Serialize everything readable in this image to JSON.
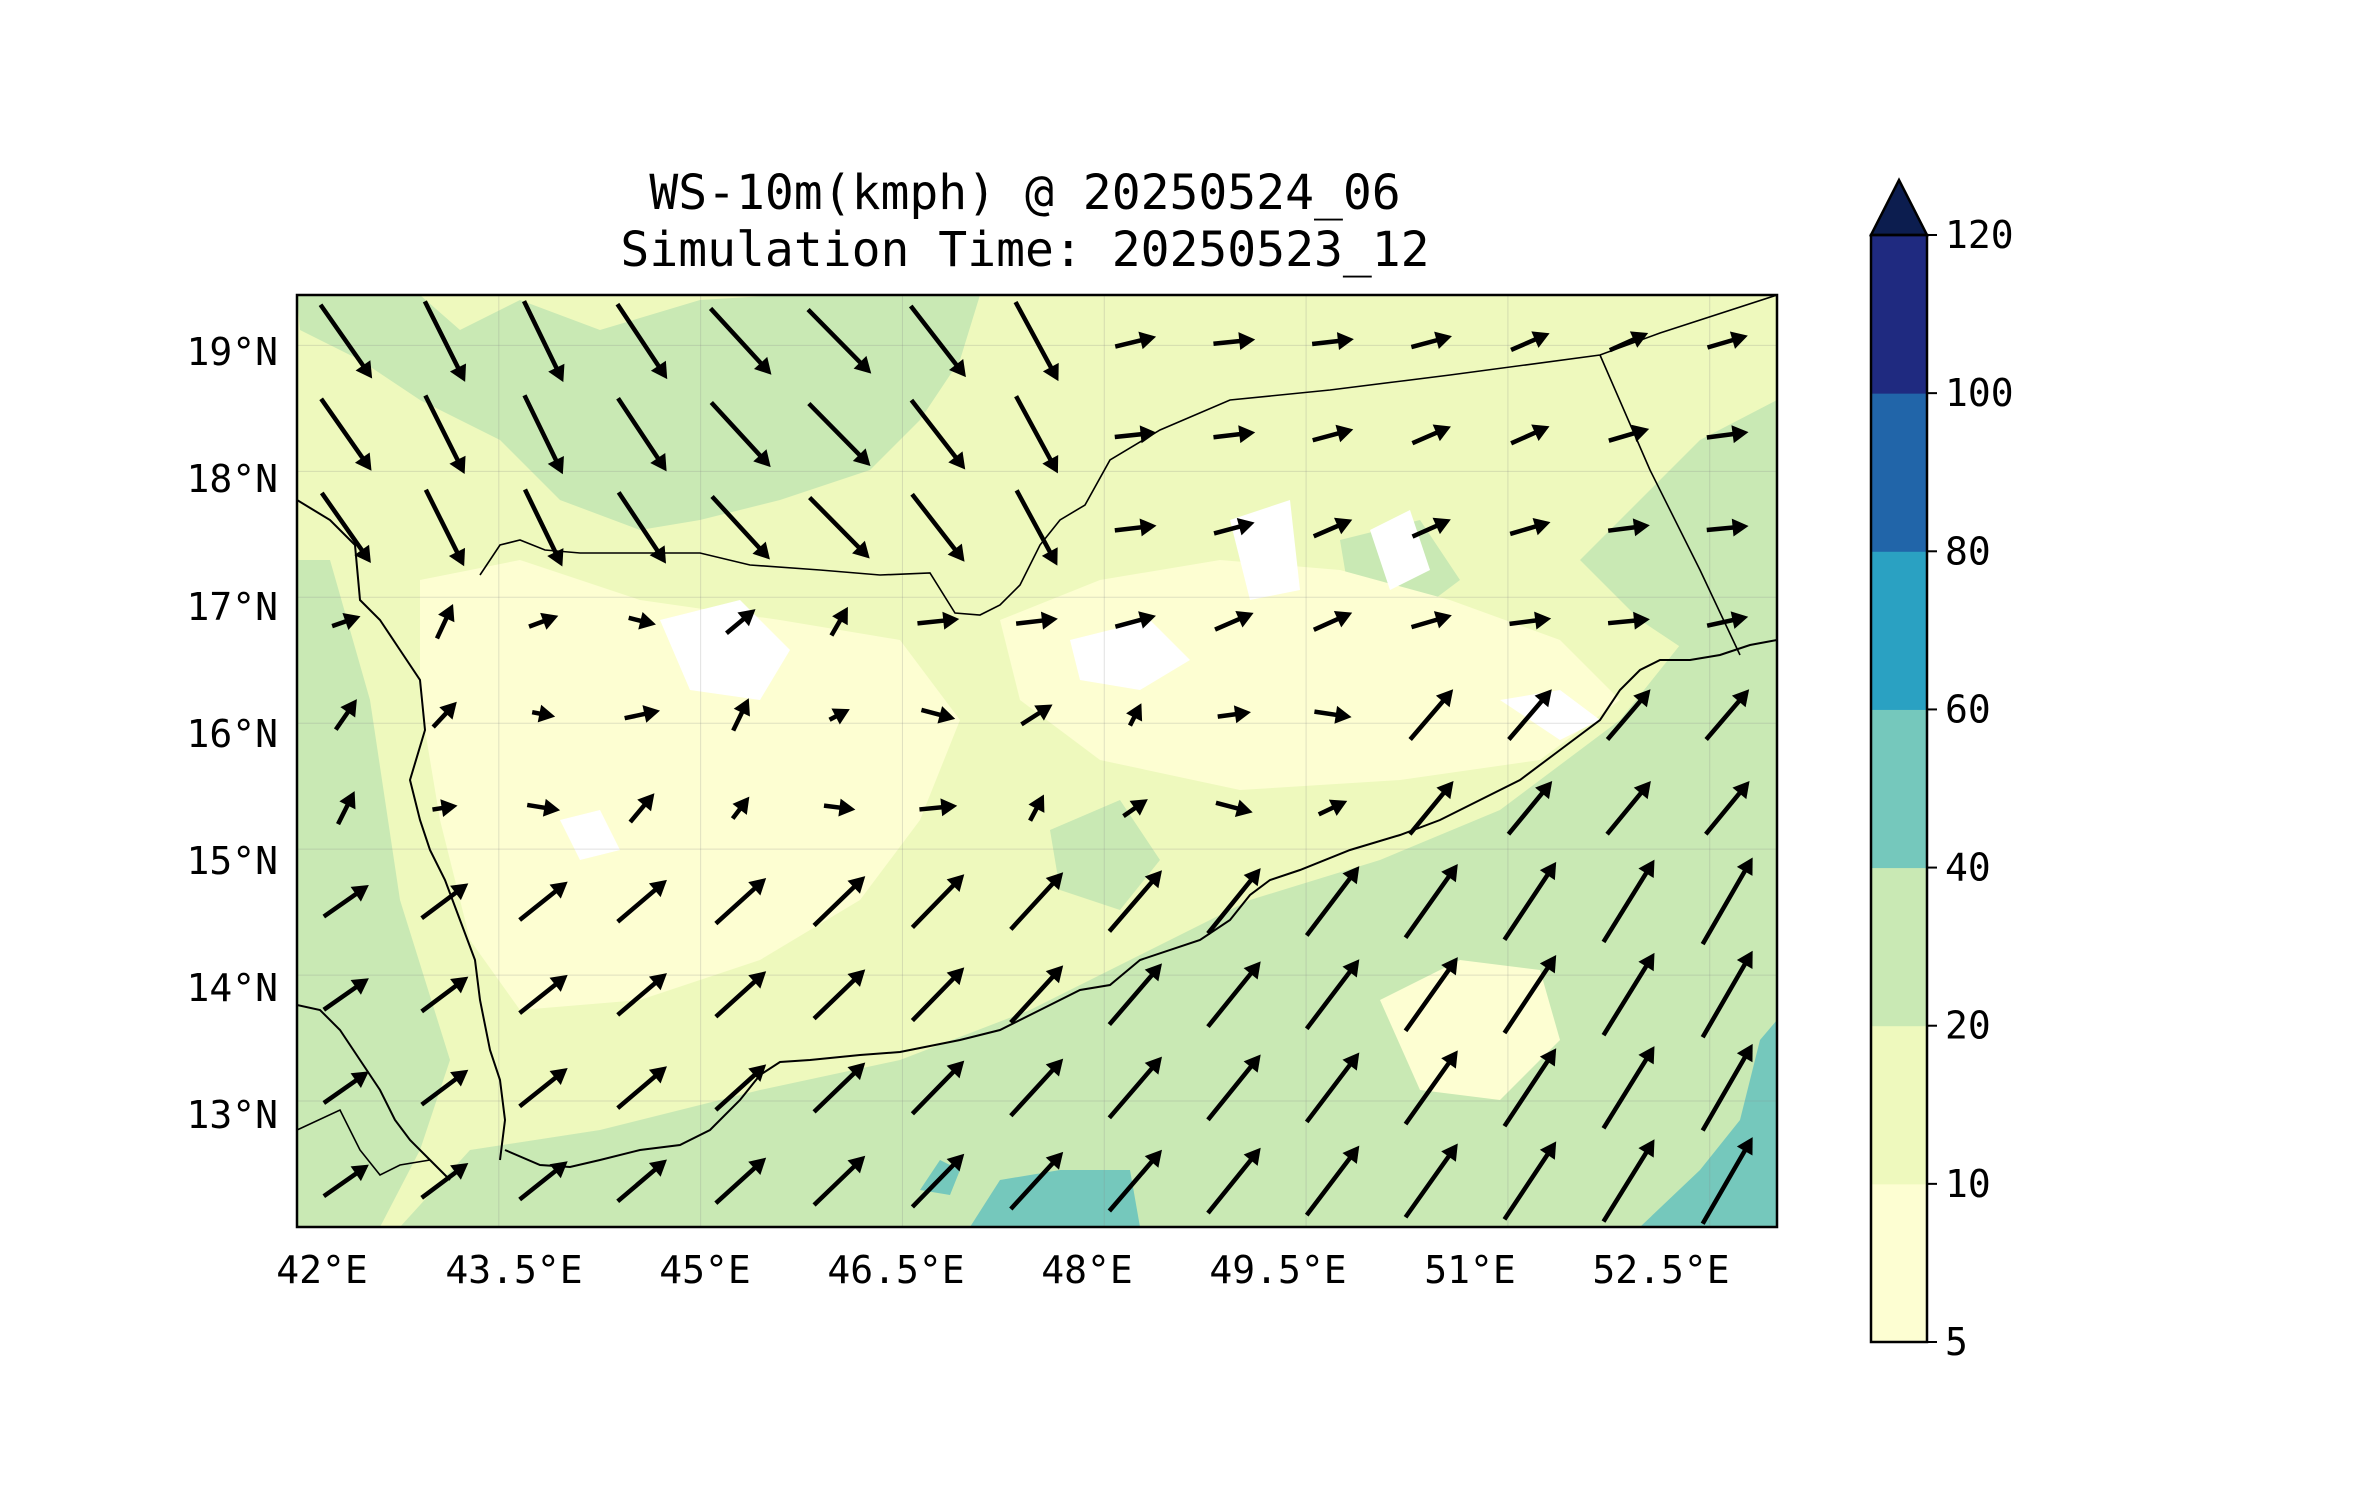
{
  "figure": {
    "title_line1": "WS-10m(kmph) @ 20250524_06",
    "title_line2": "Simulation Time: 20250523_12"
  },
  "map": {
    "lon_range": [
      42.0,
      53.0
    ],
    "lat_range": [
      12.0,
      19.4
    ],
    "x_ticks": [
      {
        "value": 42.0,
        "label": "42°E"
      },
      {
        "value": 43.5,
        "label": "43.5°E"
      },
      {
        "value": 45.0,
        "label": "45°E"
      },
      {
        "value": 46.5,
        "label": "46.5°E"
      },
      {
        "value": 48.0,
        "label": "48°E"
      },
      {
        "value": 49.5,
        "label": "49.5°E"
      },
      {
        "value": 51.0,
        "label": "51°E"
      },
      {
        "value": 52.5,
        "label": "52.5°E"
      }
    ],
    "y_ticks": [
      {
        "value": 19,
        "label": "19°N"
      },
      {
        "value": 18,
        "label": "18°N"
      },
      {
        "value": 17,
        "label": "17°N"
      },
      {
        "value": 16,
        "label": "16°N"
      },
      {
        "value": 15,
        "label": "15°N"
      },
      {
        "value": 14,
        "label": "14°N"
      },
      {
        "value": 13,
        "label": "13°N"
      }
    ],
    "gridlines": true
  },
  "colorbar": {
    "levels": [
      5,
      10,
      20,
      40,
      60,
      80,
      100,
      120
    ],
    "tick_labels": [
      "5",
      "10",
      "20",
      "40",
      "60",
      "80",
      "100",
      "120"
    ],
    "colors": [
      "#fdfed2",
      "#eef9bd",
      "#c9e9b4",
      "#75c8bc",
      "#2aa1c2",
      "#2165a9",
      "#1f2a80"
    ],
    "extend_color": "#0c1d4f",
    "extend": "max"
  },
  "land_color": "#eef9bd",
  "shading_colors": {
    "calm": "#ffffff",
    "low": "#fdfed2",
    "moderate": "#c9e9b4",
    "strong": "#75c8bc"
  }
}
